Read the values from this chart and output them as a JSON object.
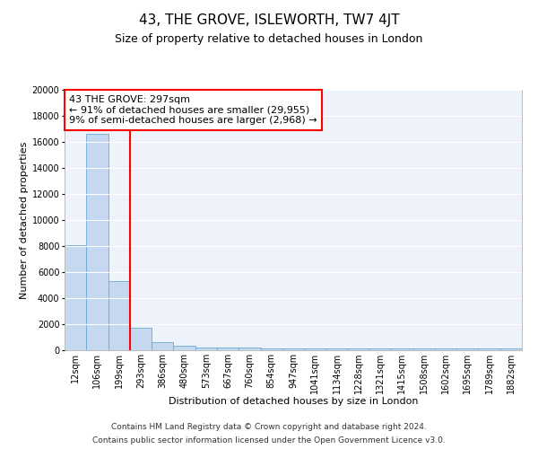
{
  "title": "43, THE GROVE, ISLEWORTH, TW7 4JT",
  "subtitle": "Size of property relative to detached houses in London",
  "xlabel": "Distribution of detached houses by size in London",
  "ylabel": "Number of detached properties",
  "bar_labels": [
    "12sqm",
    "106sqm",
    "199sqm",
    "293sqm",
    "386sqm",
    "480sqm",
    "573sqm",
    "667sqm",
    "760sqm",
    "854sqm",
    "947sqm",
    "1041sqm",
    "1134sqm",
    "1228sqm",
    "1321sqm",
    "1415sqm",
    "1508sqm",
    "1602sqm",
    "1695sqm",
    "1789sqm",
    "1882sqm"
  ],
  "bar_heights": [
    8100,
    16600,
    5300,
    1750,
    650,
    350,
    230,
    230,
    230,
    130,
    130,
    130,
    130,
    130,
    130,
    130,
    130,
    130,
    130,
    130,
    130
  ],
  "bar_color": "#c5d8f0",
  "bar_edge_color": "#6aaad4",
  "vline_color": "red",
  "vline_x_index": 2.5,
  "annotation_text": "43 THE GROVE: 297sqm\n← 91% of detached houses are smaller (29,955)\n9% of semi-detached houses are larger (2,968) →",
  "annotation_box_color": "white",
  "annotation_box_edge": "red",
  "ylim": [
    0,
    20000
  ],
  "yticks": [
    0,
    2000,
    4000,
    6000,
    8000,
    10000,
    12000,
    14000,
    16000,
    18000,
    20000
  ],
  "footer_line1": "Contains HM Land Registry data © Crown copyright and database right 2024.",
  "footer_line2": "Contains public sector information licensed under the Open Government Licence v3.0.",
  "bg_color": "#eef2fa",
  "grid_color": "white",
  "title_fontsize": 11,
  "subtitle_fontsize": 9,
  "axis_label_fontsize": 8,
  "tick_fontsize": 7,
  "annotation_fontsize": 8,
  "footer_fontsize": 6.5
}
